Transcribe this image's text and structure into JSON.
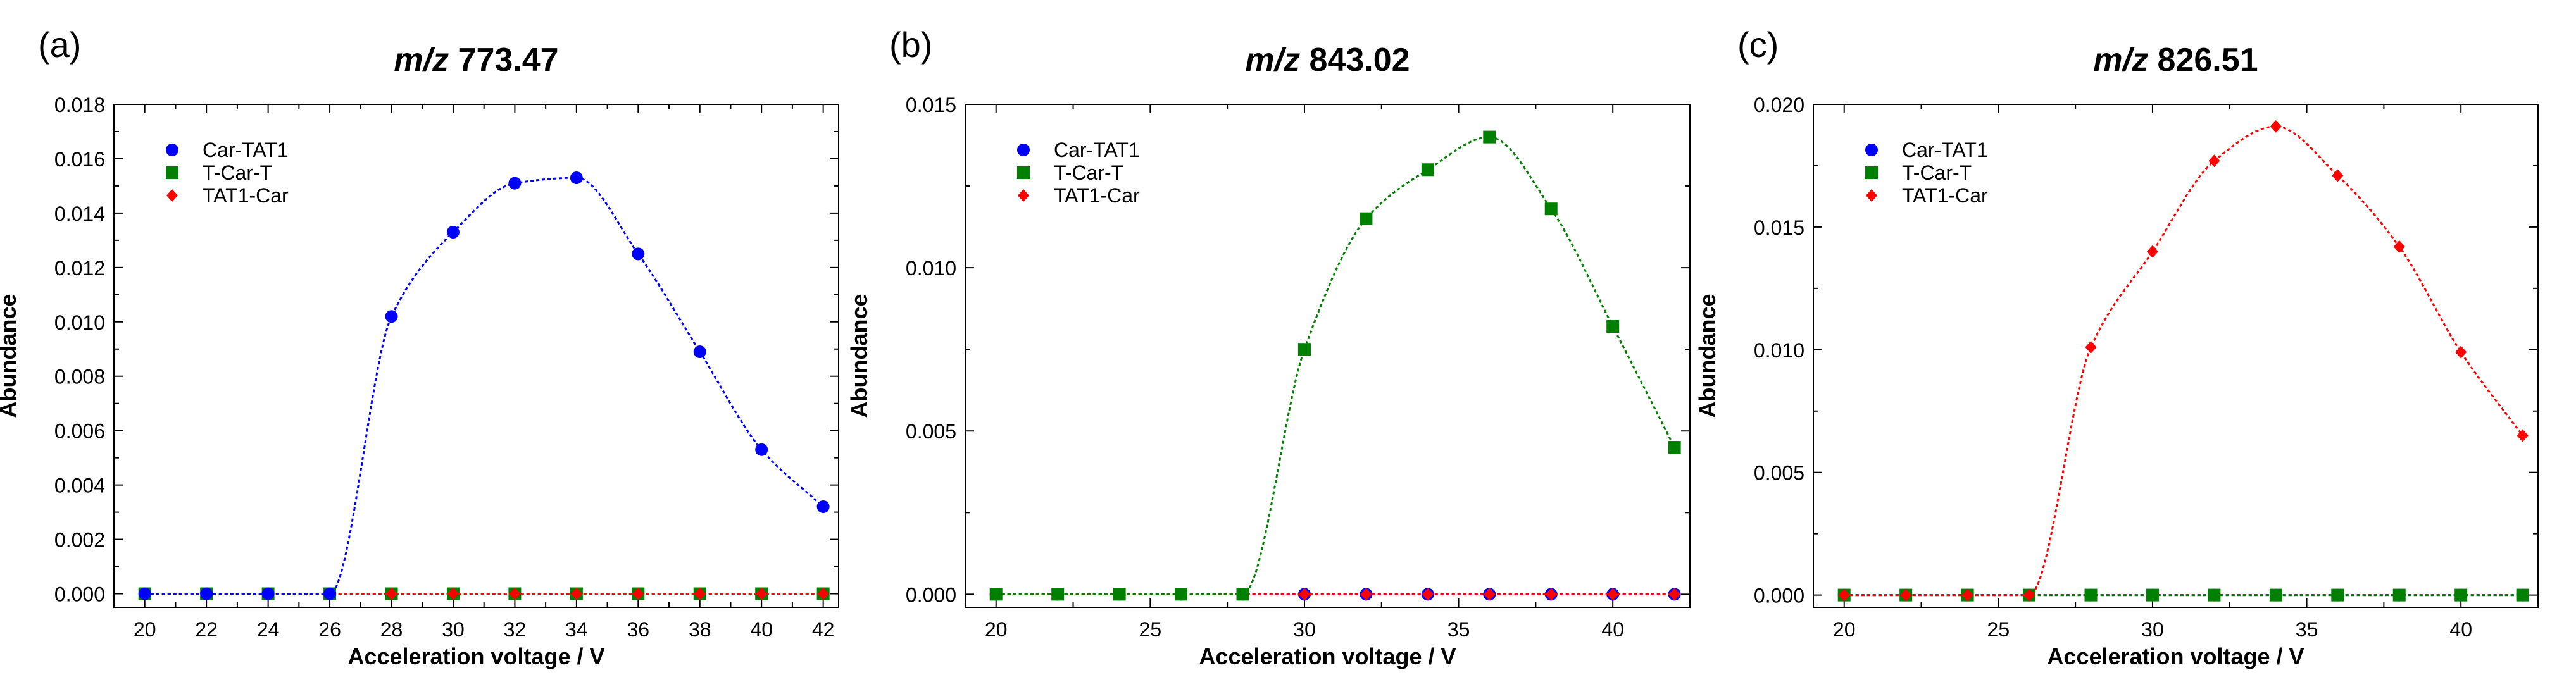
{
  "chart_data": [
    {
      "type": "scatter",
      "panel_label": "(a)",
      "title_prefix": "m/z",
      "title_value": "773.47",
      "xlabel": "Acceleration voltage / V",
      "ylabel": "Abundance",
      "xlim": [
        19,
        42.5
      ],
      "ylim": [
        -0.0005,
        0.018
      ],
      "xticks": [
        20,
        22,
        24,
        26,
        28,
        30,
        32,
        34,
        36,
        38,
        40,
        42
      ],
      "xticklabels": [
        "20",
        "22",
        "24",
        "26",
        "28",
        "30",
        "32",
        "34",
        "36",
        "38",
        "40",
        "42"
      ],
      "yticks": [
        0,
        0.002,
        0.004,
        0.006,
        0.008,
        0.01,
        0.012,
        0.014,
        0.016,
        0.018
      ],
      "yticklabels": [
        "0.000",
        "0.002",
        "0.004",
        "0.006",
        "0.008",
        "0.010",
        "0.012",
        "0.014",
        "0.016",
        "0.018"
      ],
      "x": [
        20,
        22,
        24,
        26,
        28,
        30,
        32,
        34,
        36,
        38,
        40,
        42
      ],
      "series": [
        {
          "name": "Car-TAT1",
          "color": "#0000ff",
          "marker": "circle",
          "values": [
            0,
            0,
            0,
            0,
            0.0102,
            0.0133,
            0.0151,
            0.0153,
            0.0125,
            0.0089,
            0.0053,
            0.0032
          ]
        },
        {
          "name": "T-Car-T",
          "color": "#008000",
          "marker": "square",
          "values": [
            0,
            0,
            0,
            0,
            0,
            0,
            0,
            0,
            0,
            0,
            0,
            0
          ]
        },
        {
          "name": "TAT1-Car",
          "color": "#ff0000",
          "marker": "diamond",
          "values": [
            0,
            0,
            0,
            0,
            0,
            0,
            0,
            0,
            0,
            0,
            0,
            0
          ]
        }
      ],
      "legend_position": "top-left"
    },
    {
      "type": "scatter",
      "panel_label": "(b)",
      "title_prefix": "m/z",
      "title_value": "843.02",
      "xlabel": "Acceleration voltage / V",
      "ylabel": "Abundance",
      "xlim": [
        19,
        42.5
      ],
      "ylim": [
        -0.0004,
        0.015
      ],
      "xticks": [
        20,
        25,
        30,
        35,
        40
      ],
      "xticklabels": [
        "20",
        "25",
        "30",
        "35",
        "40"
      ],
      "yticks": [
        0,
        0.005,
        0.01,
        0.015
      ],
      "yticklabels": [
        "0.000",
        "0.005",
        "0.010",
        "0.015"
      ],
      "x": [
        20,
        22,
        24,
        26,
        28,
        30,
        32,
        34,
        36,
        38,
        40,
        42
      ],
      "series": [
        {
          "name": "Car-TAT1",
          "color": "#0000ff",
          "marker": "circle",
          "values": [
            0,
            0,
            0,
            0,
            0,
            0,
            0,
            0,
            0,
            0,
            0,
            0
          ]
        },
        {
          "name": "T-Car-T",
          "color": "#008000",
          "marker": "square",
          "values": [
            0,
            0,
            0,
            0,
            0,
            0.0075,
            0.0115,
            0.013,
            0.014,
            0.0118,
            0.0082,
            0.0045
          ]
        },
        {
          "name": "TAT1-Car",
          "color": "#ff0000",
          "marker": "diamond",
          "values": [
            0,
            0,
            0,
            0,
            0,
            0,
            0,
            0,
            0,
            0,
            0,
            0
          ]
        }
      ],
      "legend_position": "top-left"
    },
    {
      "type": "scatter",
      "panel_label": "(c)",
      "title_prefix": "m/z",
      "title_value": "826.51",
      "xlabel": "Acceleration voltage / V",
      "ylabel": "Abundance",
      "xlim": [
        19,
        42.5
      ],
      "ylim": [
        -0.0005,
        0.02
      ],
      "xticks": [
        20,
        25,
        30,
        35,
        40
      ],
      "xticklabels": [
        "20",
        "25",
        "30",
        "35",
        "40"
      ],
      "yticks": [
        0,
        0.005,
        0.01,
        0.015,
        0.02
      ],
      "yticklabels": [
        "0.000",
        "0.005",
        "0.010",
        "0.015",
        "0.020"
      ],
      "x": [
        20,
        22,
        24,
        26,
        28,
        30,
        32,
        34,
        36,
        38,
        40,
        42
      ],
      "series": [
        {
          "name": "Car-TAT1",
          "color": "#0000ff",
          "marker": "circle",
          "values": [
            0,
            0,
            0,
            0,
            0,
            0,
            0,
            0,
            0,
            0,
            0,
            0
          ]
        },
        {
          "name": "T-Car-T",
          "color": "#008000",
          "marker": "square",
          "values": [
            0,
            0,
            0,
            0,
            0,
            0,
            0,
            0,
            0,
            0,
            0,
            0
          ]
        },
        {
          "name": "TAT1-Car",
          "color": "#ff0000",
          "marker": "diamond",
          "values": [
            0,
            0,
            0,
            0,
            0.0101,
            0.014,
            0.0177,
            0.0191,
            0.0171,
            0.0142,
            0.0099,
            0.0065
          ]
        }
      ],
      "legend_position": "top-left"
    }
  ]
}
